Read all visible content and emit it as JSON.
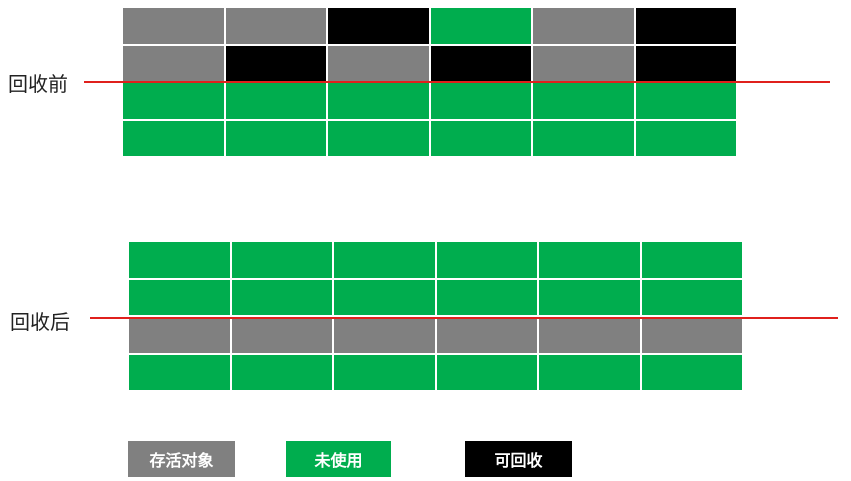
{
  "colors": {
    "survive": "#808080",
    "unused": "#00ad4e",
    "reclaimable": "#000000",
    "line": "#e0201c"
  },
  "before": {
    "label": "回收前",
    "rows": [
      [
        "s",
        "s",
        "k",
        "g",
        "s",
        "k"
      ],
      [
        "s",
        "k",
        "s",
        "k",
        "s",
        "k"
      ],
      [
        "g",
        "g",
        "g",
        "g",
        "g",
        "g"
      ],
      [
        "g",
        "g",
        "g",
        "g",
        "g",
        "g"
      ]
    ]
  },
  "after": {
    "label": "回收后",
    "rows": [
      [
        "g",
        "g",
        "g",
        "g",
        "g",
        "g"
      ],
      [
        "g",
        "g",
        "g",
        "g",
        "g",
        "g"
      ],
      [
        "s",
        "s",
        "s",
        "s",
        "s",
        "s"
      ],
      [
        "g",
        "g",
        "g",
        "g",
        "g",
        "g"
      ]
    ]
  },
  "legend": {
    "survive": "存活对象",
    "unused": "未使用",
    "reclaimable": "可回收"
  }
}
